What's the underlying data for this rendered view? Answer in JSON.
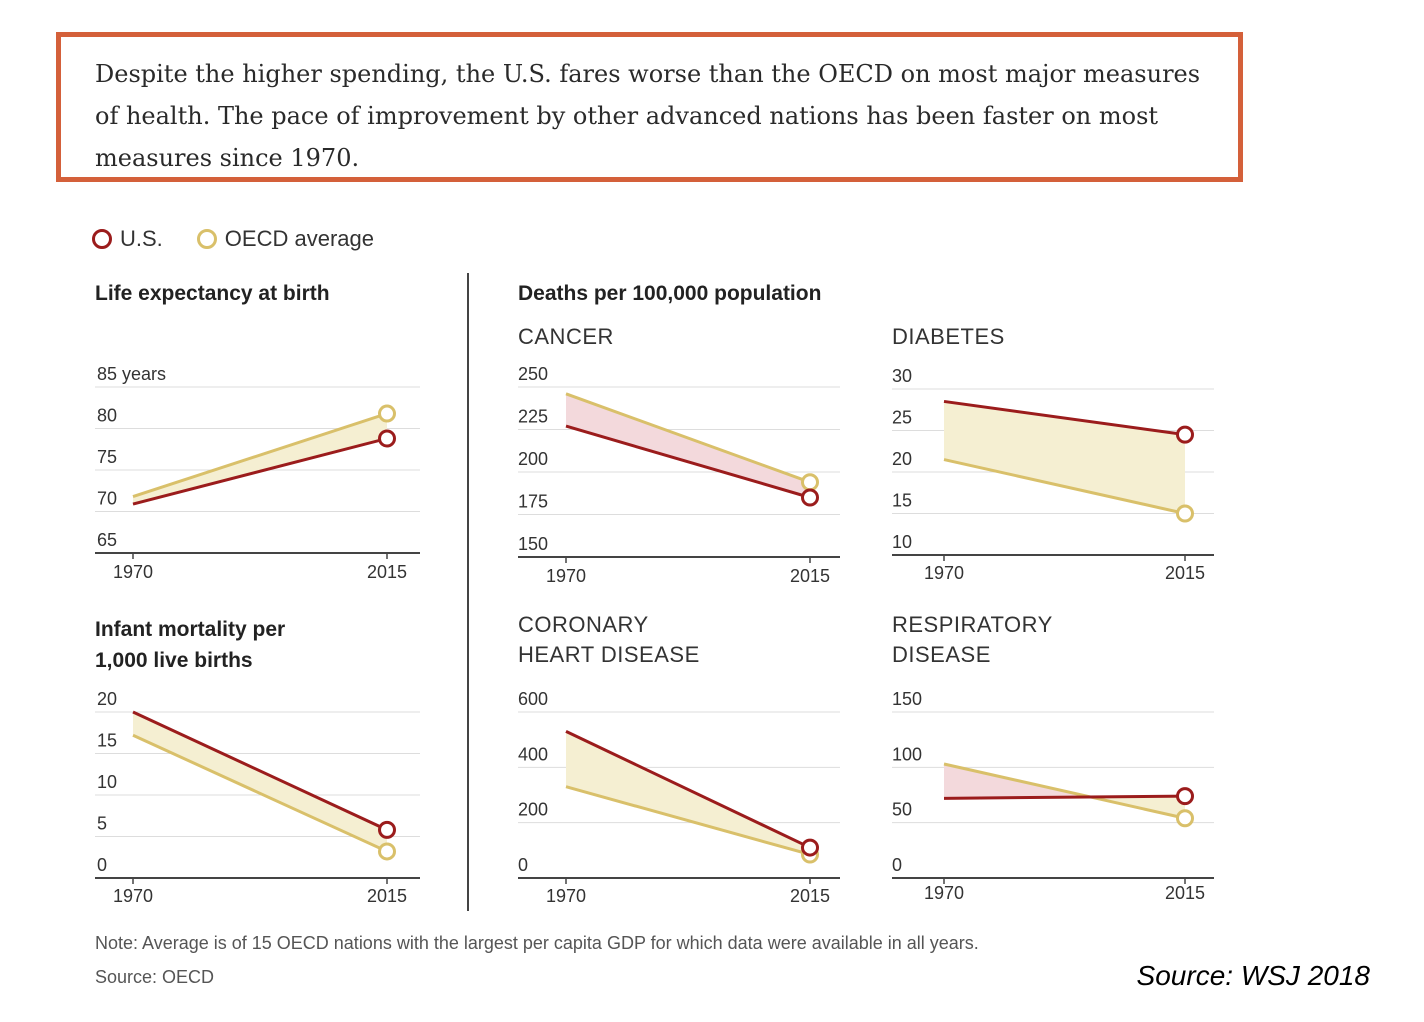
{
  "callout": {
    "text": "Despite the higher spending, the U.S. fares worse than the OECD on most major measures of health. The pace of improvement by other advanced nations has been faster on most measures since 1970."
  },
  "legend": [
    {
      "label": "U.S.",
      "color": "#9b1c1c"
    },
    {
      "label": "OECD average",
      "color": "#d9c06a"
    }
  ],
  "headings": {
    "life": "Life expectancy at birth",
    "deaths": "Deaths per 100,000 population",
    "infant_line1": "Infant mortality per",
    "infant_line2": "1,000 live births"
  },
  "subheadings": {
    "cancer": "CANCER",
    "diabetes": "DIABETES",
    "coronary_line1": "CORONARY",
    "coronary_line2": "HEART DISEASE",
    "respiratory_line1": "RESPIRATORY",
    "respiratory_line2": "DISEASE"
  },
  "colors": {
    "us": "#9b1c1c",
    "oecd": "#d9c06a",
    "fill_us_better": "#f5efd2",
    "fill_us_worse": "#f3d9dc",
    "grid": "#dddddd",
    "axis": "#444444"
  },
  "chart_data": [
    {
      "id": "life",
      "type": "line",
      "x": [
        "1970",
        "2015"
      ],
      "series": [
        {
          "name": "U.S.",
          "values": [
            70.9,
            78.8
          ]
        },
        {
          "name": "OECD average",
          "values": [
            71.8,
            81.8
          ]
        }
      ],
      "yticks": [
        "85 years",
        "80",
        "75",
        "70",
        "65"
      ],
      "ylim": [
        65,
        85
      ]
    },
    {
      "id": "cancer",
      "type": "line",
      "x": [
        "1970",
        "2015"
      ],
      "series": [
        {
          "name": "U.S.",
          "values": [
            227,
            185
          ]
        },
        {
          "name": "OECD average",
          "values": [
            246,
            194
          ]
        }
      ],
      "yticks": [
        "250",
        "225",
        "200",
        "175",
        "150"
      ],
      "ylim": [
        150,
        250
      ]
    },
    {
      "id": "diabetes",
      "type": "line",
      "x": [
        "1970",
        "2015"
      ],
      "series": [
        {
          "name": "U.S.",
          "values": [
            28.5,
            24.5
          ]
        },
        {
          "name": "OECD average",
          "values": [
            21.5,
            15
          ]
        }
      ],
      "yticks": [
        "30",
        "25",
        "20",
        "15",
        "10"
      ],
      "ylim": [
        10,
        30
      ]
    },
    {
      "id": "infant",
      "type": "line",
      "x": [
        "1970",
        "2015"
      ],
      "series": [
        {
          "name": "U.S.",
          "values": [
            20,
            5.8
          ]
        },
        {
          "name": "OECD average",
          "values": [
            17.2,
            3.2
          ]
        }
      ],
      "yticks": [
        "20",
        "15",
        "10",
        "5",
        "0"
      ],
      "ylim": [
        0,
        20
      ]
    },
    {
      "id": "coronary",
      "type": "line",
      "x": [
        "1970",
        "2015"
      ],
      "series": [
        {
          "name": "U.S.",
          "values": [
            530,
            110
          ]
        },
        {
          "name": "OECD average",
          "values": [
            330,
            85
          ]
        }
      ],
      "yticks": [
        "600",
        "400",
        "200",
        "0"
      ],
      "ylim": [
        0,
        600
      ]
    },
    {
      "id": "respiratory",
      "type": "line",
      "x": [
        "1970",
        "2015"
      ],
      "series": [
        {
          "name": "U.S.",
          "values": [
            72,
            74
          ]
        },
        {
          "name": "OECD average",
          "values": [
            103,
            54
          ]
        }
      ],
      "yticks": [
        "150",
        "100",
        "50",
        "0"
      ],
      "ylim": [
        0,
        150
      ]
    }
  ],
  "footer": {
    "note": "Note: Average is of 15 OECD nations with the largest per capita GDP for which data were available in all years.",
    "source": "Source: OECD",
    "credit": "Source: WSJ  2018"
  }
}
